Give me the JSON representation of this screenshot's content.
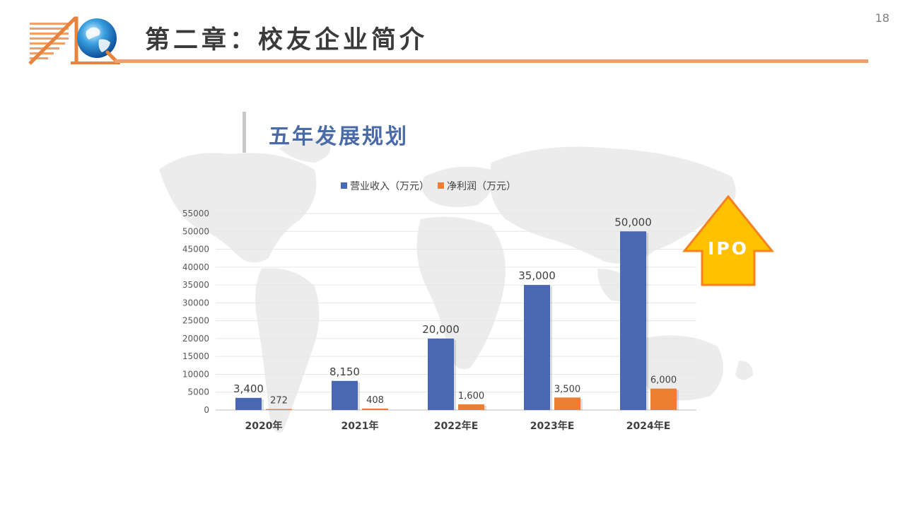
{
  "header": {
    "chapter_title": "第二章：校友企业简介",
    "page_number": "18"
  },
  "section": {
    "title": "五年发展规划"
  },
  "ipo_badge": {
    "label": "IPO",
    "fill_color": "#ffc000",
    "border_color": "#f58220"
  },
  "icons": [
    "logo-icon",
    "world-map-icon",
    "ipo-arrow-icon"
  ],
  "chart_data": {
    "type": "bar",
    "title": "",
    "xlabel": "",
    "ylabel": "",
    "categories": [
      "2020年",
      "2021年",
      "2022年E",
      "2023年E",
      "2024年E"
    ],
    "series": [
      {
        "name": "营业收入（万元）",
        "color": "#4a67b1",
        "values": [
          3400,
          8150,
          20000,
          35000,
          50000
        ],
        "labels": [
          "3,400",
          "8,150",
          "20,000",
          "35,000",
          "50,000"
        ]
      },
      {
        "name": "净利润（万元）",
        "color": "#ed7d31",
        "values": [
          272,
          408,
          1600,
          3500,
          6000
        ],
        "labels": [
          "272",
          "408",
          "1,600",
          "3,500",
          "6,000"
        ]
      }
    ],
    "ylim": [
      0,
      55000
    ],
    "yticks": [
      0,
      5000,
      10000,
      15000,
      20000,
      25000,
      30000,
      35000,
      40000,
      45000,
      50000,
      55000
    ],
    "grid": true,
    "legend_position": "top"
  }
}
